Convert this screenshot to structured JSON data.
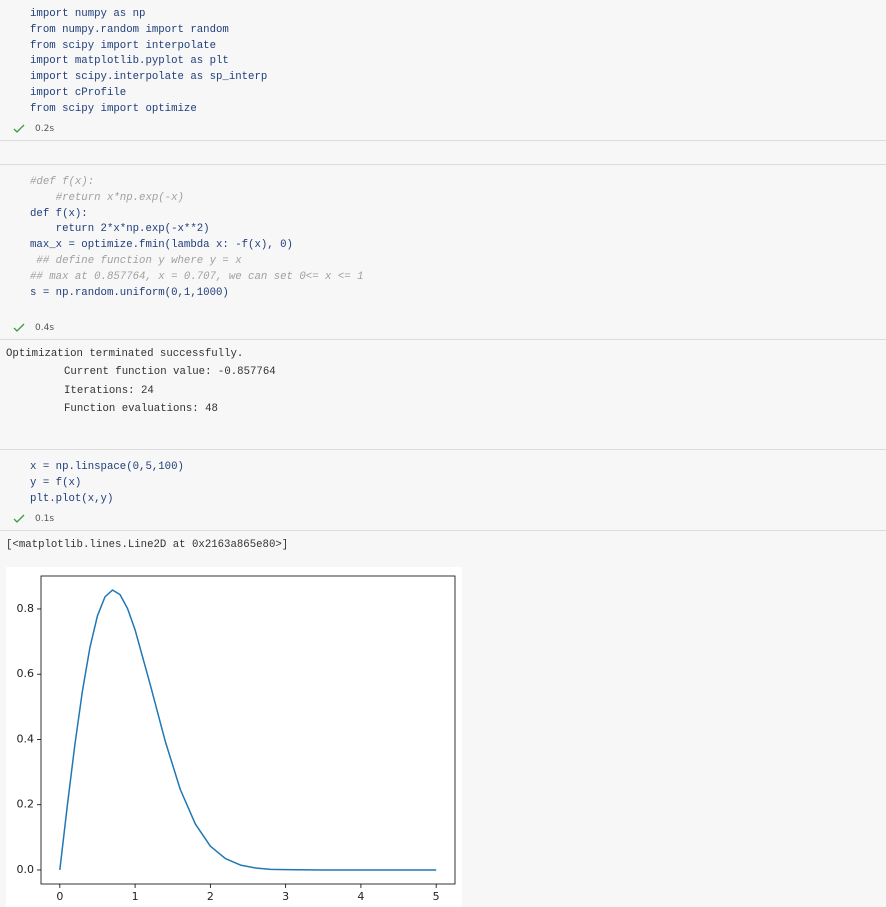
{
  "cells": [
    {
      "code": [
        "import numpy as np",
        "from numpy.random import random",
        "from scipy import interpolate",
        "import matplotlib.pyplot as plt",
        "import scipy.interpolate as sp_interp",
        "import cProfile",
        "from scipy import optimize"
      ],
      "status": "0.2s"
    },
    {
      "code": [
        "#def f(x):",
        "    #return x*np.exp(-x)",
        "def f(x):",
        "    return 2*x*np.exp(-x**2)",
        "max_x = optimize.fmin(lambda x: -f(x), 0)",
        " ## define function y where y = x",
        "## max at 0.857764, x = 0.707, we can set 0<= x <= 1",
        "s = np.random.uniform(0,1,1000)"
      ],
      "status": "0.4s",
      "output": [
        "Optimization terminated successfully.",
        "Current function value: -0.857764",
        "Iterations: 24",
        "Function evaluations: 48"
      ]
    },
    {
      "code": [
        "x = np.linspace(0,5,100)",
        "y = f(x)",
        "plt.plot(x,y)"
      ],
      "status": "0.1s",
      "output": [
        "[<matplotlib.lines.Line2D at 0x2163a865e80>]"
      ]
    }
  ],
  "chart_data": {
    "type": "line",
    "color": "#1f77b4",
    "x": [
      0,
      0.1,
      0.2,
      0.3,
      0.4,
      0.5,
      0.6,
      0.7,
      0.8,
      0.9,
      1.0,
      1.2,
      1.4,
      1.6,
      1.8,
      2.0,
      2.2,
      2.4,
      2.6,
      2.8,
      3.0,
      3.5,
      4.0,
      4.5,
      5.0
    ],
    "values": [
      0,
      0.198,
      0.384,
      0.548,
      0.682,
      0.779,
      0.837,
      0.858,
      0.844,
      0.801,
      0.736,
      0.569,
      0.395,
      0.247,
      0.141,
      0.073,
      0.035,
      0.015,
      0.006,
      0.002,
      0.001,
      0,
      0,
      0,
      0
    ],
    "xlim": [
      -0.25,
      5.25
    ],
    "ylim": [
      -0.043,
      0.901
    ],
    "xticks": [
      0,
      1,
      2,
      3,
      4,
      5
    ],
    "yticks": [
      {
        "value": 0,
        "label": "0.0"
      },
      0.2,
      0.4,
      0.6,
      0.8
    ]
  }
}
